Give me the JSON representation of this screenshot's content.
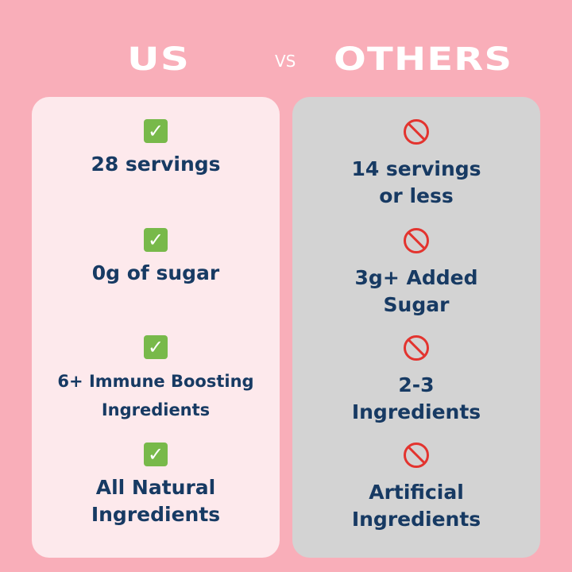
{
  "header": {
    "us": "US",
    "vs": "VS",
    "others": "OTHERS"
  },
  "colors": {
    "background": "#f9aeb9",
    "us_card": "#fde9ec",
    "others_card": "#d3d3d3",
    "text": "#173a63",
    "check": "#78b94a",
    "prohibited": "#e3342f"
  },
  "us": {
    "icon": "check-mark-icon",
    "items": [
      {
        "line1": "28 servings",
        "line2": ""
      },
      {
        "line1": "0g of sugar",
        "line2": ""
      },
      {
        "line1": "6+ Immune Boosting",
        "line2": "Ingredients"
      },
      {
        "line1": "All Natural",
        "line2": "Ingredients"
      }
    ]
  },
  "others": {
    "icon": "prohibited-icon",
    "items": [
      {
        "line1": "14 servings",
        "line2": "or less"
      },
      {
        "line1": "3g+ Added",
        "line2": "Sugar"
      },
      {
        "line1": "2-3",
        "line2": "Ingredients"
      },
      {
        "line1": "Artificial",
        "line2": "Ingredients"
      }
    ]
  }
}
